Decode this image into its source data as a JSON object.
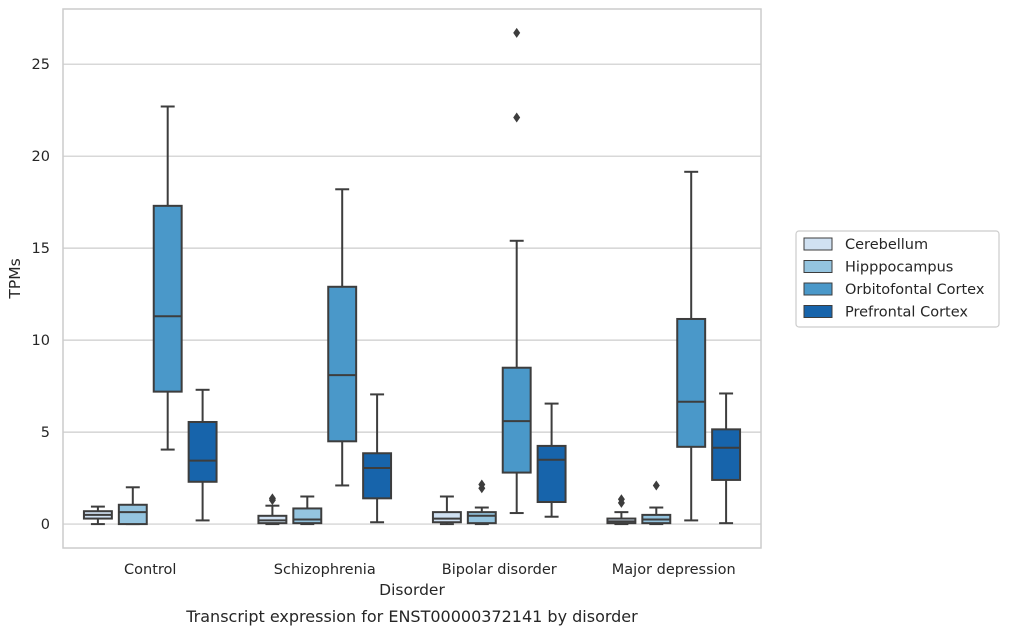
{
  "chart_data": {
    "type": "box",
    "title": "",
    "caption": "Transcript expression for ENST00000372141 by disorder",
    "xlabel": "Disorder",
    "ylabel": "TPMs",
    "ylim": [
      -1.3,
      28.0
    ],
    "yticks": [
      0,
      5,
      10,
      15,
      20,
      25
    ],
    "grid": "horizontal",
    "legend_position": "right",
    "categories": [
      "Control",
      "Schizophrenia",
      "Bipolar disorder",
      "Major depression"
    ],
    "series": [
      {
        "name": "Cerebellum",
        "color": "#d0e1f2",
        "boxes": [
          {
            "whislo": 0.0,
            "q1": 0.3,
            "med": 0.5,
            "q3": 0.7,
            "whishi": 0.95,
            "fliers": []
          },
          {
            "whislo": 0.0,
            "q1": 0.05,
            "med": 0.2,
            "q3": 0.45,
            "whishi": 1.0,
            "fliers": [
              1.3,
              1.4
            ]
          },
          {
            "whislo": 0.0,
            "q1": 0.1,
            "med": 0.3,
            "q3": 0.65,
            "whishi": 1.5,
            "fliers": []
          },
          {
            "whislo": 0.0,
            "q1": 0.05,
            "med": 0.15,
            "q3": 0.3,
            "whishi": 0.65,
            "fliers": [
              1.15,
              1.35
            ]
          }
        ]
      },
      {
        "name": "Hipppocampus",
        "color": "#94c4df",
        "boxes": [
          {
            "whislo": 0.0,
            "q1": 0.0,
            "med": 0.65,
            "q3": 1.05,
            "whishi": 2.0,
            "fliers": []
          },
          {
            "whislo": 0.0,
            "q1": 0.05,
            "med": 0.25,
            "q3": 0.85,
            "whishi": 1.5,
            "fliers": []
          },
          {
            "whislo": 0.0,
            "q1": 0.05,
            "med": 0.45,
            "q3": 0.65,
            "whishi": 0.9,
            "fliers": [
              1.95,
              2.15
            ]
          },
          {
            "whislo": 0.0,
            "q1": 0.05,
            "med": 0.25,
            "q3": 0.5,
            "whishi": 0.9,
            "fliers": [
              2.1
            ]
          }
        ]
      },
      {
        "name": "Orbitofontal Cortex",
        "color": "#4a98c9",
        "boxes": [
          {
            "whislo": 4.05,
            "q1": 7.2,
            "med": 11.3,
            "q3": 17.3,
            "whishi": 22.7,
            "fliers": []
          },
          {
            "whislo": 2.1,
            "q1": 4.5,
            "med": 8.1,
            "q3": 12.9,
            "whishi": 18.2,
            "fliers": []
          },
          {
            "whislo": 0.6,
            "q1": 2.8,
            "med": 5.6,
            "q3": 8.5,
            "whishi": 15.4,
            "fliers": [
              22.1,
              26.7
            ]
          },
          {
            "whislo": 0.2,
            "q1": 4.2,
            "med": 6.65,
            "q3": 11.15,
            "whishi": 19.15,
            "fliers": []
          }
        ]
      },
      {
        "name": "Prefrontal Cortex",
        "color": "#1764ab",
        "boxes": [
          {
            "whislo": 0.2,
            "q1": 2.3,
            "med": 3.45,
            "q3": 5.55,
            "whishi": 7.3,
            "fliers": []
          },
          {
            "whislo": 0.1,
            "q1": 1.4,
            "med": 3.05,
            "q3": 3.85,
            "whishi": 7.05,
            "fliers": []
          },
          {
            "whislo": 0.4,
            "q1": 1.2,
            "med": 3.5,
            "q3": 4.25,
            "whishi": 6.55,
            "fliers": []
          },
          {
            "whislo": 0.05,
            "q1": 2.4,
            "med": 4.15,
            "q3": 5.15,
            "whishi": 7.1,
            "fliers": []
          }
        ]
      }
    ]
  }
}
